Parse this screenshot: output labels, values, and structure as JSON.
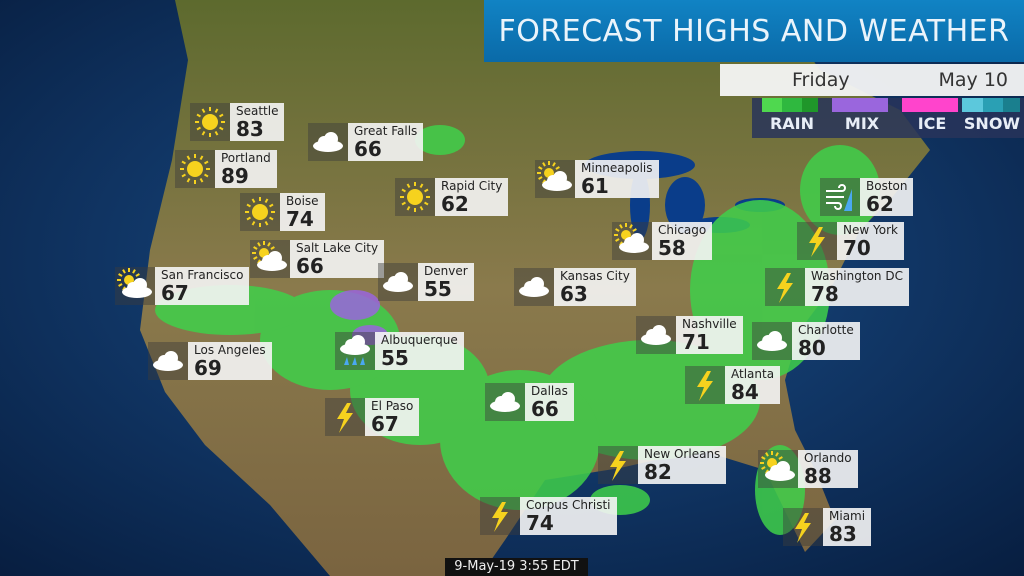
{
  "header": {
    "title": "FORECAST HIGHS AND WEATHER"
  },
  "date_bar": {
    "day": "Friday",
    "date": "May 10"
  },
  "legend": [
    {
      "label": "RAIN",
      "colors": [
        "#4fd84f",
        "#2fb83f",
        "#1f962a"
      ]
    },
    {
      "label": "MIX",
      "colors": [
        "#9a66dd"
      ]
    },
    {
      "label": "ICE",
      "colors": [
        "#ff44cc"
      ]
    },
    {
      "label": "SNOW",
      "colors": [
        "#5cc8dc",
        "#2aa0b4",
        "#1a7f8e"
      ]
    }
  ],
  "cities": [
    {
      "name": "Seattle",
      "temp": "83",
      "icon": "sun-icon"
    },
    {
      "name": "Great Falls",
      "temp": "66",
      "icon": "cloud-icon"
    },
    {
      "name": "Portland",
      "temp": "89",
      "icon": "sun-icon"
    },
    {
      "name": "Boise",
      "temp": "74",
      "icon": "sun-icon"
    },
    {
      "name": "Rapid City",
      "temp": "62",
      "icon": "sun-icon"
    },
    {
      "name": "Minneapolis",
      "temp": "61",
      "icon": "partly-cloudy-icon"
    },
    {
      "name": "Salt Lake City",
      "temp": "66",
      "icon": "partly-cloudy-icon"
    },
    {
      "name": "San Francisco",
      "temp": "67",
      "icon": "partly-cloudy-icon"
    },
    {
      "name": "Denver",
      "temp": "55",
      "icon": "cloud-icon"
    },
    {
      "name": "Kansas City",
      "temp": "63",
      "icon": "cloud-icon"
    },
    {
      "name": "Chicago",
      "temp": "58",
      "icon": "partly-cloudy-icon"
    },
    {
      "name": "Boston",
      "temp": "62",
      "icon": "wind-rain-icon"
    },
    {
      "name": "New York",
      "temp": "70",
      "icon": "thunderstorm-icon"
    },
    {
      "name": "Washington DC",
      "temp": "78",
      "icon": "thunderstorm-icon"
    },
    {
      "name": "Charlotte",
      "temp": "80",
      "icon": "cloud-icon"
    },
    {
      "name": "Nashville",
      "temp": "71",
      "icon": "cloud-icon"
    },
    {
      "name": "Los Angeles",
      "temp": "69",
      "icon": "cloud-icon"
    },
    {
      "name": "Albuquerque",
      "temp": "55",
      "icon": "rain-icon"
    },
    {
      "name": "Atlanta",
      "temp": "84",
      "icon": "thunderstorm-icon"
    },
    {
      "name": "El Paso",
      "temp": "67",
      "icon": "thunderstorm-icon"
    },
    {
      "name": "Dallas",
      "temp": "66",
      "icon": "cloud-icon"
    },
    {
      "name": "New Orleans",
      "temp": "82",
      "icon": "thunderstorm-icon"
    },
    {
      "name": "Orlando",
      "temp": "88",
      "icon": "partly-cloudy-icon"
    },
    {
      "name": "Corpus Christi",
      "temp": "74",
      "icon": "thunderstorm-icon"
    },
    {
      "name": "Miami",
      "temp": "83",
      "icon": "thunderstorm-icon"
    }
  ],
  "timestamp": "9-May-19 3:55 EDT"
}
